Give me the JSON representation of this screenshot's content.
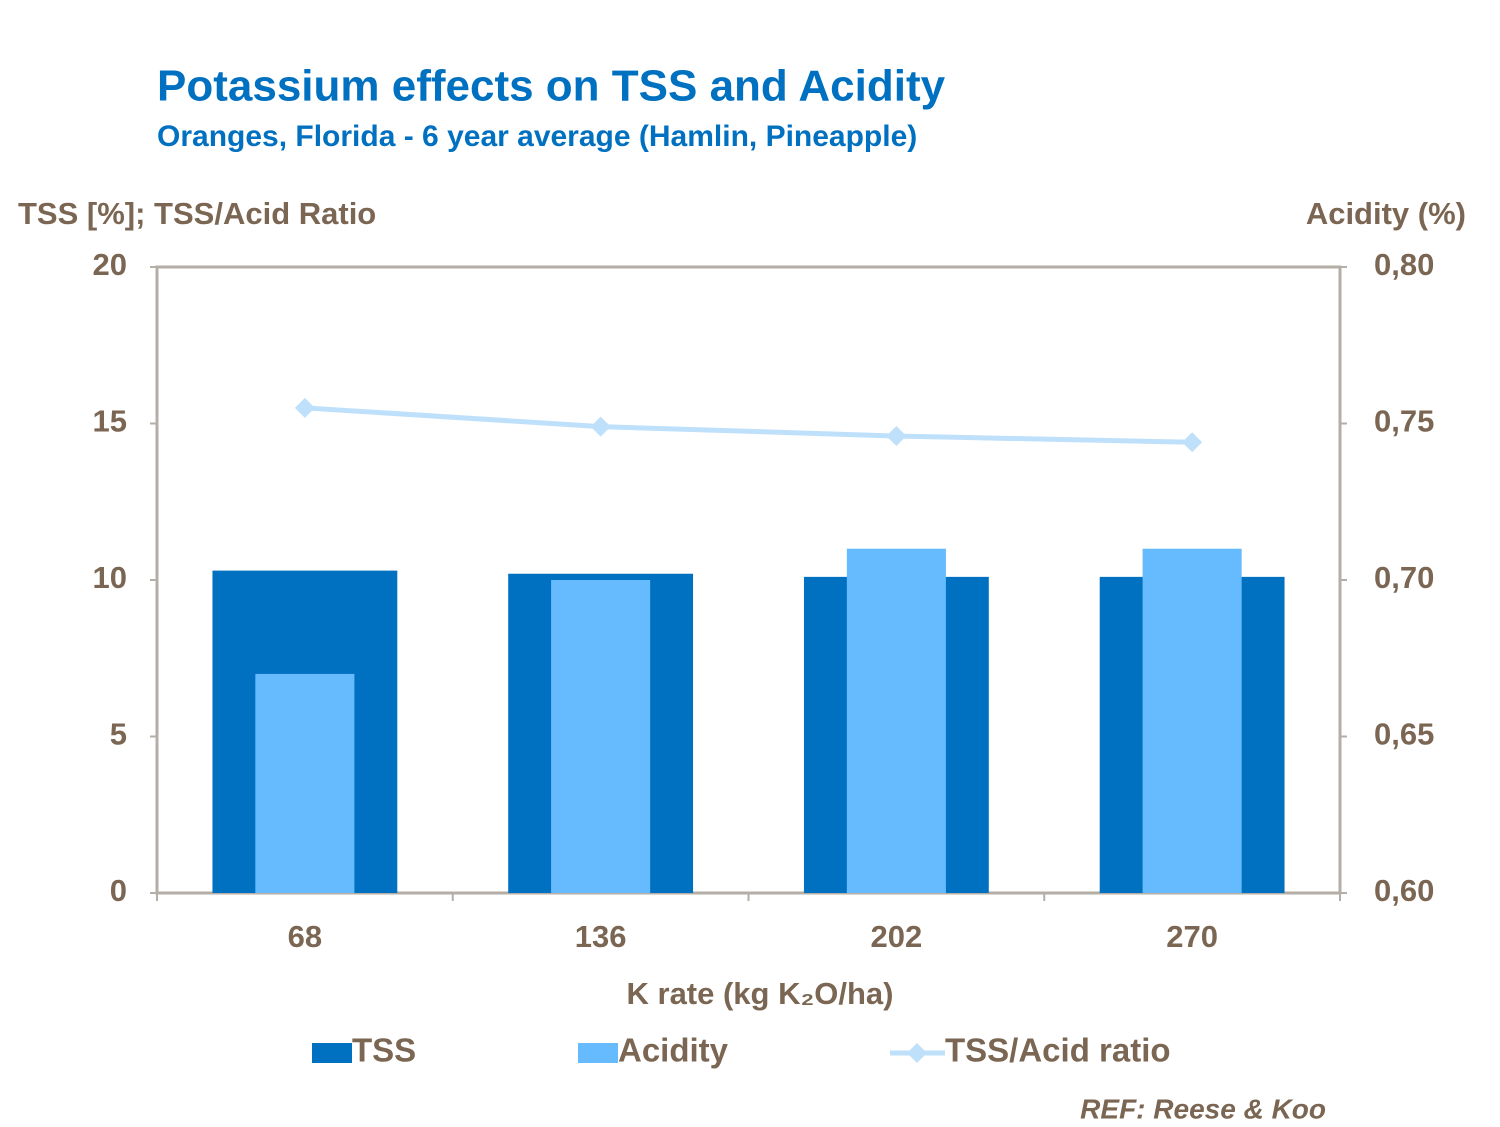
{
  "chart_data": {
    "type": "bar",
    "title": "Potassium effects on TSS and Acidity",
    "subtitle": "Oranges, Florida - 6 year average (Hamlin, Pineapple)",
    "y_label": "TSS [%]; TSS/Acid Ratio",
    "y2_label": "Acidity (%)",
    "x_label": "K rate (kg K₂O/ha)",
    "annotation": "REF: Reese & Koo",
    "categories": [
      "68",
      "136",
      "202",
      "270"
    ],
    "series": [
      {
        "name": "TSS",
        "type": "bar",
        "color": "#0070c0",
        "values": [
          10.3,
          10.2,
          10.1,
          10.1
        ]
      },
      {
        "name": "Acidity",
        "type": "bar",
        "color": "#66bbff",
        "axis": "y2",
        "values": [
          0.67,
          0.7,
          0.71,
          0.71
        ]
      },
      {
        "name": "TSS/Acid ratio",
        "type": "line",
        "color": "#bfe0fb",
        "values": [
          15.5,
          14.9,
          14.6,
          14.4
        ]
      }
    ],
    "ylim": [
      0,
      20
    ],
    "yticks": [
      0,
      5,
      10,
      15,
      20
    ],
    "y2lim": [
      0.6,
      0.8
    ],
    "y2ticks": [
      {
        "value": 0.6,
        "label": "0,60"
      },
      {
        "value": 0.65,
        "label": "0,65"
      },
      {
        "value": 0.7,
        "label": "0,70"
      },
      {
        "value": 0.75,
        "label": "0,75"
      },
      {
        "value": 0.8,
        "label": "0,80"
      }
    ],
    "legend": "bottom"
  }
}
